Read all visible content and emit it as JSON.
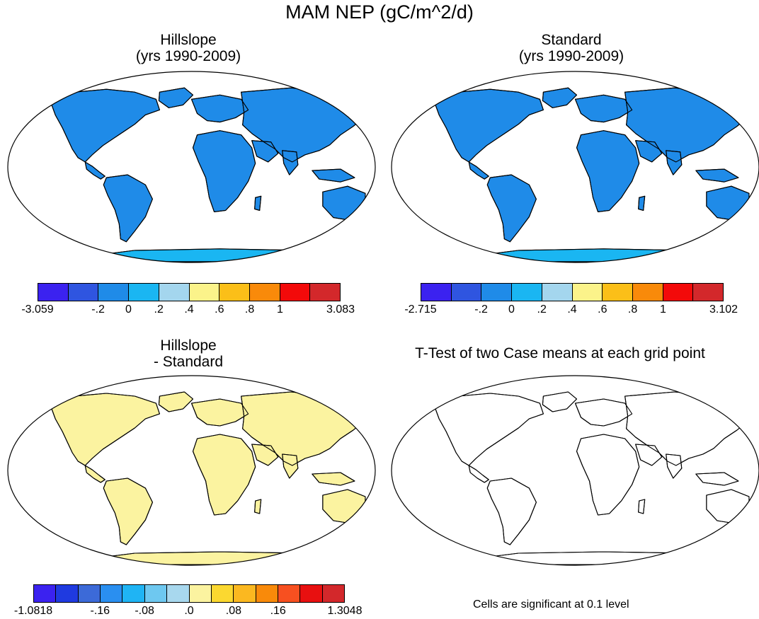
{
  "title": "MAM NEP (gC/m^2/d)",
  "panels": [
    {
      "id": "hillslope",
      "title_line1": "Hillslope",
      "title_line2": "(yrs 1990-2009)"
    },
    {
      "id": "standard",
      "title_line1": "Standard",
      "title_line2": "(yrs 1990-2009)"
    },
    {
      "id": "difference",
      "title_line1": "Hillslope",
      "title_line2": "- Standard"
    },
    {
      "id": "ttest",
      "title_line1": "T-Test of two Case means at each grid point",
      "title_line2": ""
    }
  ],
  "colorbars": [
    {
      "id": "hillslope",
      "colors": [
        "#3b22f0",
        "#2f55e0",
        "#1f8be8",
        "#1ab6f2",
        "#a4d6ee",
        "#fbf38a",
        "#fbbf18",
        "#f98a0a",
        "#f30a0a",
        "#d3282b"
      ],
      "labels": [
        "-3.059",
        "-.2",
        "0",
        ".2",
        ".4",
        ".6",
        ".8",
        "1",
        "3.083"
      ]
    },
    {
      "id": "standard",
      "colors": [
        "#3b22f0",
        "#2f55e0",
        "#1f8be8",
        "#1ab6f2",
        "#a4d6ee",
        "#fbf38a",
        "#fbbf18",
        "#f98a0a",
        "#f30a0a",
        "#d3282b"
      ],
      "labels": [
        "-2.715",
        "-.2",
        "0",
        ".2",
        ".4",
        ".6",
        ".8",
        "1",
        "3.102"
      ]
    },
    {
      "id": "difference",
      "colors": [
        "#3b22f0",
        "#1f3ae0",
        "#3c6ad8",
        "#2a8ff0",
        "#1fb4f4",
        "#6ec8f0",
        "#a8d8ee",
        "#fbf3a0",
        "#fbd830",
        "#fbb820",
        "#f98a0a",
        "#f75020",
        "#e81010",
        "#d3282b"
      ],
      "labels": [
        "-1.0818",
        "-.16",
        "-.08",
        ".0",
        ".08",
        ".16",
        "1.3048"
      ]
    }
  ],
  "footnote": "Cells are significant at 0.1 level",
  "colors": {
    "ocean": "#ffffff",
    "coast": "#000000",
    "significant": "#f30a0a"
  }
}
